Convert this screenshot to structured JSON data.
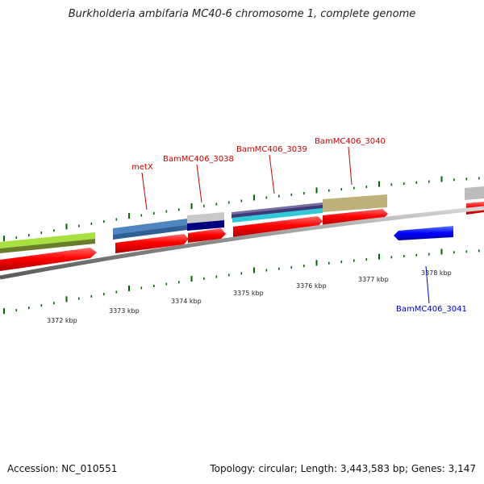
{
  "header": {
    "title": "Burkholderia ambifaria MC40-6 chromosome 1, complete genome"
  },
  "footer": {
    "accession": "Accession: NC_010551",
    "summary": "Topology: circular; Length: 3,443,583 bp; Genes: 3,147"
  },
  "scale": {
    "ticks": [
      "3372 kbp",
      "3373 kbp",
      "3374 kbp",
      "3375 kbp",
      "3376 kbp",
      "3377 kbp",
      "3378 kbp"
    ]
  },
  "genes": {
    "metX": "metX",
    "g3038": "BamMC406_3038",
    "g3039": "BamMC406_3039",
    "g3040": "BamMC406_3040",
    "g3041": "BamMC406_3041"
  },
  "colors": {
    "cds_red": "#ff0000",
    "reverse_blue": "#0000ff",
    "forward_label": "#cc0000",
    "reverse_label": "#0000cc",
    "tick_green": "#006600",
    "backbone_gray": "#888888"
  }
}
